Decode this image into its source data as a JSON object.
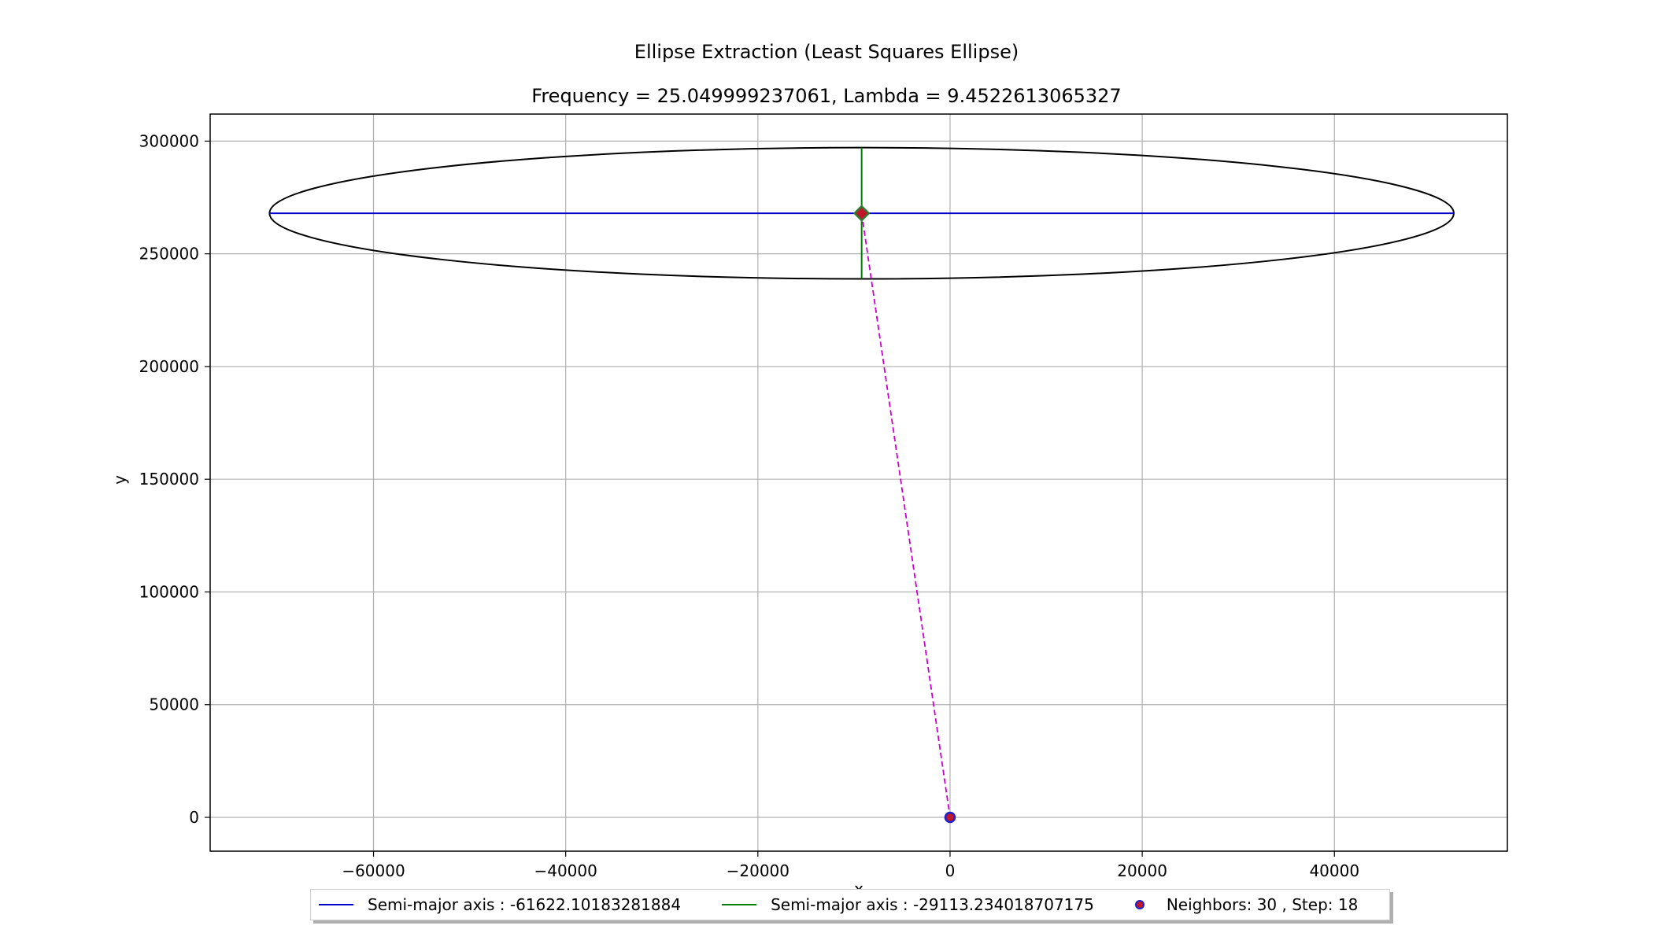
{
  "chart_data": {
    "type": "scatter",
    "title": "Ellipse Extraction (Least Squares Ellipse)",
    "subtitle": "Frequency = 25.049999237061, Lambda = 9.4522613065327",
    "xlabel": "x",
    "ylabel": "y",
    "xlim": [
      -77000,
      58000
    ],
    "ylim": [
      -15000,
      312000
    ],
    "x_ticks": [
      -60000,
      -40000,
      -20000,
      0,
      20000,
      40000
    ],
    "x_tick_labels": [
      "−60000",
      "−40000",
      "−20000",
      "0",
      "20000",
      "40000"
    ],
    "y_ticks": [
      0,
      50000,
      100000,
      150000,
      200000,
      250000,
      300000
    ],
    "y_tick_labels": [
      "0",
      "50000",
      "100000",
      "150000",
      "200000",
      "250000",
      "300000"
    ],
    "grid": true,
    "legend_placement": "bottom-center",
    "ellipse": {
      "center": [
        -9200,
        268000
      ],
      "semi_x": 61622.10183281884,
      "semi_y": 29113.234018707175,
      "color": "#000000"
    },
    "series": [
      {
        "name": "Semi-major axis : -61622.10183281884",
        "kind": "line",
        "color": "#0000cc",
        "x": [
          -70822,
          52422
        ],
        "y": [
          268000,
          268000
        ]
      },
      {
        "name": "Semi-major axis : -29113.234018707175",
        "kind": "line",
        "color": "#008000",
        "x": [
          -9200,
          -9200
        ],
        "y": [
          238887,
          297113
        ]
      },
      {
        "name": "Neighbors: 30 , Step: 18",
        "kind": "scatter",
        "color": "#c0182a",
        "edgecolor": "#1f1fd0",
        "x": [
          0
        ],
        "y": [
          0
        ]
      }
    ],
    "center_marker": {
      "x": -9200,
      "y": 268000,
      "color": "#c0182a",
      "edgecolor": "#2e7d32"
    },
    "dashed_connector": {
      "x": [
        -9200,
        0
      ],
      "y": [
        268000,
        0
      ],
      "color": "#cc00cc"
    }
  }
}
